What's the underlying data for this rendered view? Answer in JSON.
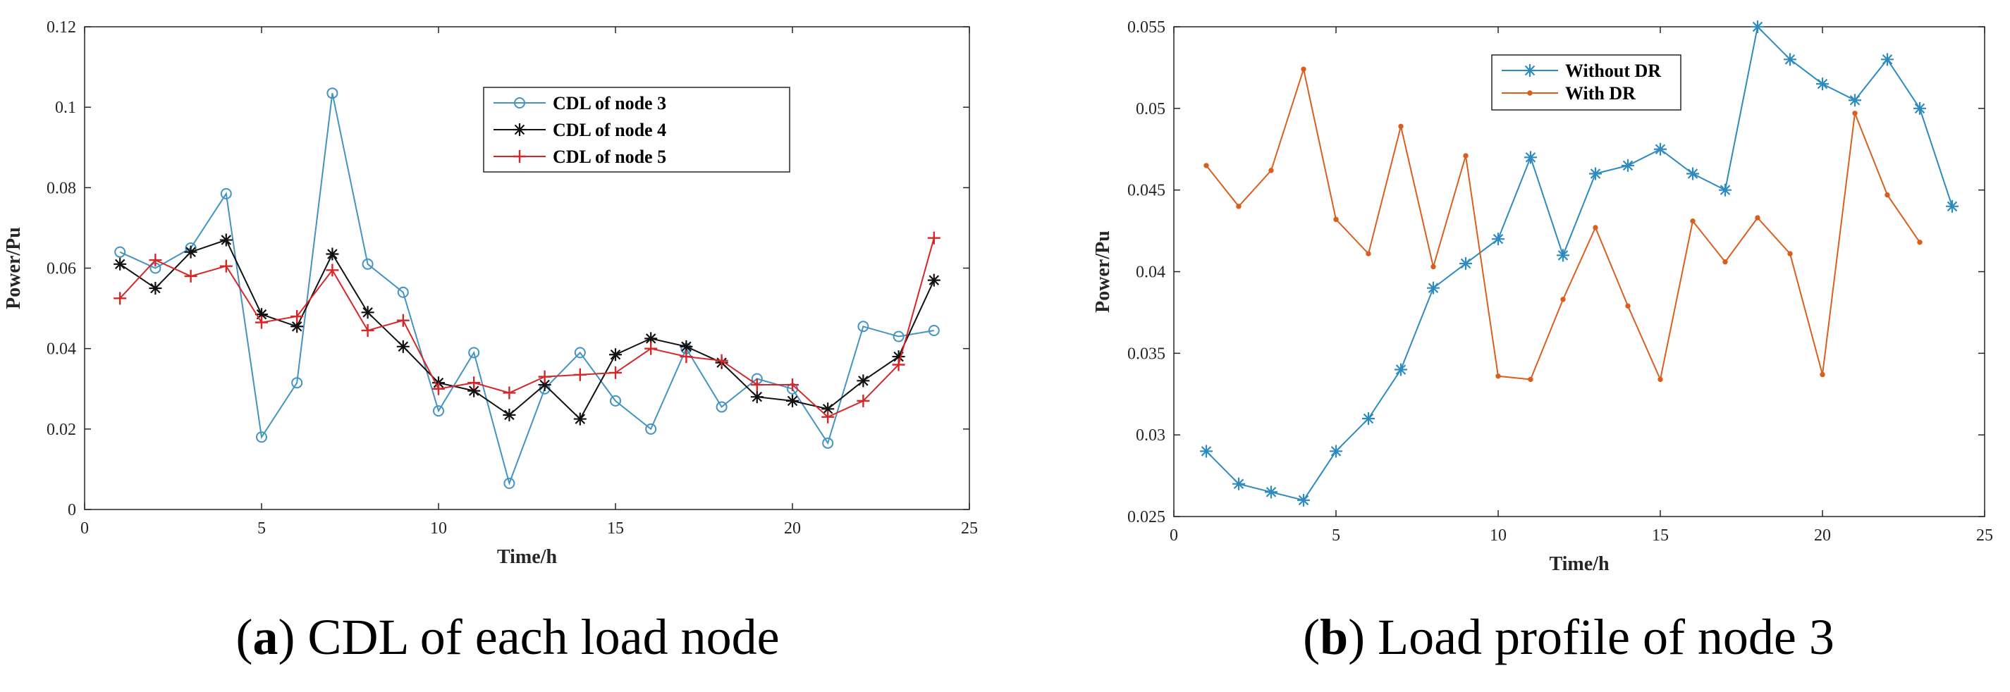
{
  "chart_data": [
    {
      "type": "line",
      "caption": {
        "label": "a",
        "text": "CDL of each load node"
      },
      "xlabel": "Time/h",
      "ylabel": "Power/Pu",
      "xlim": [
        0,
        25
      ],
      "ylim": [
        0,
        0.12
      ],
      "xticks": [
        "0",
        "5",
        "10",
        "15",
        "20",
        "25"
      ],
      "yticks": [
        "0",
        "0.02",
        "0.04",
        "0.06",
        "0.08",
        "0.1",
        "0.12"
      ],
      "legend_position": "top-right",
      "x": [
        1,
        2,
        3,
        4,
        5,
        6,
        7,
        8,
        9,
        10,
        11,
        12,
        13,
        14,
        15,
        16,
        17,
        18,
        19,
        20,
        21,
        22,
        23,
        24
      ],
      "series": [
        {
          "name": "CDL of node 3",
          "color": "#4393c3",
          "marker": "circle",
          "values": [
            0.064,
            0.06,
            0.065,
            0.0785,
            0.018,
            0.0315,
            0.1035,
            0.061,
            0.054,
            0.0245,
            0.039,
            0.0065,
            0.03,
            0.039,
            0.027,
            0.02,
            0.04,
            0.0255,
            0.0325,
            0.03,
            0.0165,
            0.0455,
            0.043,
            0.0445
          ]
        },
        {
          "name": "CDL of node 4",
          "color": "#111111",
          "marker": "star",
          "values": [
            0.061,
            0.055,
            0.064,
            0.067,
            0.0485,
            0.0455,
            0.0635,
            0.049,
            0.0405,
            0.0315,
            0.0295,
            0.0235,
            0.031,
            0.0225,
            0.0385,
            0.0425,
            0.0405,
            0.0365,
            0.028,
            0.027,
            0.025,
            0.032,
            0.038,
            0.057
          ]
        },
        {
          "name": "CDL of node 5",
          "color": "#d62728",
          "marker": "plus",
          "values": [
            0.0525,
            0.062,
            0.058,
            0.0605,
            0.0465,
            0.048,
            0.0595,
            0.0445,
            0.047,
            0.03,
            0.0315,
            0.029,
            0.033,
            0.0335,
            0.034,
            0.04,
            0.038,
            0.037,
            0.031,
            0.031,
            0.023,
            0.027,
            0.036,
            0.0675
          ]
        }
      ]
    },
    {
      "type": "line",
      "caption": {
        "label": "b",
        "text": "Load profile of node 3"
      },
      "xlabel": "Time/h",
      "ylabel": "Power/Pu",
      "xlim": [
        0,
        25
      ],
      "ylim": [
        0.025,
        0.055
      ],
      "xticks": [
        "0",
        "5",
        "10",
        "15",
        "20",
        "25"
      ],
      "yticks": [
        "0.025",
        "0.03",
        "0.035",
        "0.04",
        "0.045",
        "0.05",
        "0.055"
      ],
      "legend_position": "top-center",
      "series": [
        {
          "name": "Without DR",
          "color": "#2e8bc0",
          "marker": "star",
          "x": [
            1,
            2,
            3,
            4,
            5,
            6,
            7,
            8,
            9,
            10,
            11,
            12,
            13,
            14,
            15,
            16,
            17,
            18,
            19,
            20,
            21,
            22,
            23,
            24
          ],
          "values": [
            0.029,
            0.027,
            0.0265,
            0.026,
            0.029,
            0.031,
            0.034,
            0.039,
            0.0405,
            0.042,
            0.047,
            0.041,
            0.046,
            0.0465,
            0.0475,
            0.046,
            0.045,
            0.055,
            0.053,
            0.0515,
            0.0505,
            0.053,
            0.05,
            0.044
          ]
        },
        {
          "name": "With DR",
          "color": "#d95f1e",
          "marker": "dot",
          "x": [
            1,
            2,
            3,
            4,
            5,
            6,
            7,
            8,
            9,
            10,
            11,
            12,
            13,
            14,
            15,
            16,
            17,
            18,
            19,
            20,
            21,
            22,
            23
          ],
          "values": [
            0.0465,
            0.044,
            0.0462,
            0.0524,
            0.0432,
            0.0411,
            0.0489,
            0.0403,
            0.0471,
            0.0336,
            0.0334,
            0.0383,
            0.0427,
            0.0379,
            0.0334,
            0.0431,
            0.0406,
            0.0433,
            0.0411,
            0.0337,
            0.0497,
            0.0447,
            0.0418
          ]
        }
      ]
    }
  ]
}
